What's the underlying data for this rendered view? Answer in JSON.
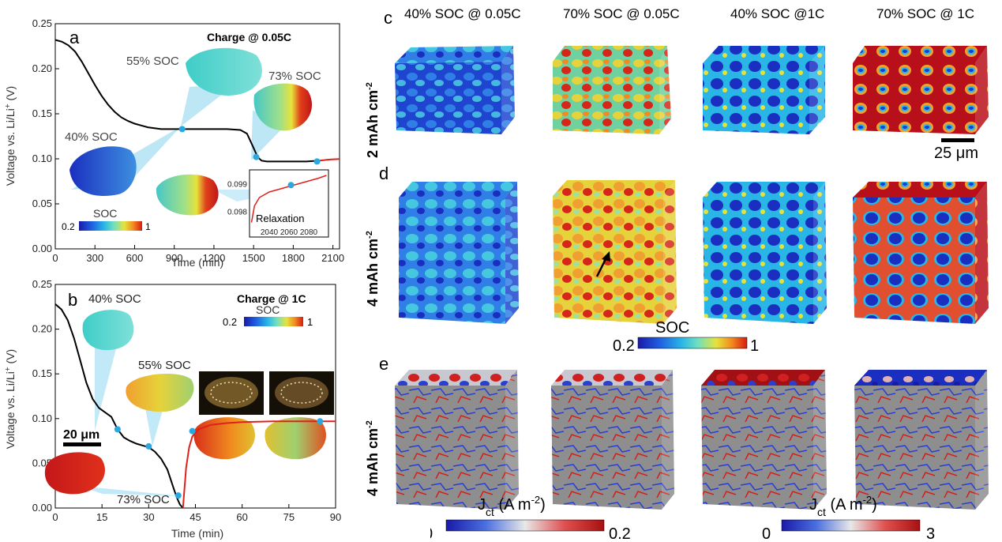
{
  "chart_data": [
    {
      "panel": "a",
      "type": "line",
      "title": "Charge @ 0.05C",
      "xlabel": "Time (min)",
      "ylabel": "Voltage vs. Li/Li",
      "ylabel_sup": "+",
      "ylabel_unit": " (V)",
      "xlim": [
        0,
        2150
      ],
      "ylim": [
        0,
        0.25
      ],
      "xticks": [
        "0",
        "300",
        "600",
        "900",
        "1200",
        "1500",
        "1800",
        "2100"
      ],
      "yticks": [
        "0.00",
        "0.05",
        "0.10",
        "0.15",
        "0.20",
        "0.25"
      ],
      "series": [
        {
          "color": "#000000",
          "x": [
            0,
            50,
            100,
            150,
            200,
            250,
            300,
            350,
            400,
            450,
            500,
            550,
            600,
            650,
            700,
            750,
            800,
            850,
            900,
            950,
            1000,
            1100,
            1200,
            1300,
            1400,
            1450,
            1500,
            1530,
            1560,
            1600,
            1700,
            1800,
            1900,
            2000
          ],
          "y": [
            0.232,
            0.23,
            0.226,
            0.219,
            0.208,
            0.195,
            0.182,
            0.17,
            0.16,
            0.152,
            0.146,
            0.142,
            0.139,
            0.137,
            0.135,
            0.134,
            0.133,
            0.133,
            0.133,
            0.133,
            0.133,
            0.133,
            0.133,
            0.133,
            0.132,
            0.128,
            0.112,
            0.102,
            0.098,
            0.097,
            0.097,
            0.097,
            0.097,
            0.098
          ]
        },
        {
          "color": "#e0201b",
          "x": [
            2000,
            2030,
            2060,
            2090,
            2120,
            2150
          ],
          "y": [
            0.098,
            0.0985,
            0.099,
            0.0993,
            0.0996,
            0.0998
          ]
        }
      ],
      "markers": [
        {
          "x": 960,
          "y": 0.133
        },
        {
          "x": 1520,
          "y": 0.102
        },
        {
          "x": 1980,
          "y": 0.097
        }
      ],
      "annotations": [
        "55% SOC",
        "73% SOC",
        "40% SOC"
      ],
      "colorbar": {
        "title": "SOC",
        "min": "0.2",
        "max": "1"
      },
      "inset": {
        "label": "Relaxation",
        "xticks": [
          "2040",
          "2060",
          "2080"
        ],
        "yticks": [
          "0.098",
          "0.099"
        ],
        "xlim": [
          2020,
          2100
        ],
        "ylim": [
          0.0975,
          0.0995
        ],
        "series": {
          "color": "#e0201b",
          "x": [
            2022,
            2025,
            2030,
            2040,
            2050,
            2060,
            2070,
            2080,
            2090,
            2098
          ],
          "y": [
            0.0976,
            0.0982,
            0.0985,
            0.0987,
            0.0988,
            0.0989,
            0.099,
            0.0991,
            0.0992,
            0.0993
          ]
        },
        "marker": {
          "x": 2062,
          "y": 0.09895
        }
      }
    },
    {
      "panel": "b",
      "type": "line",
      "title": "Charge @ 1C",
      "xlabel": "Time (min)",
      "ylabel": "Voltage vs. Li/Li",
      "ylabel_sup": "+",
      "ylabel_unit": " (V)",
      "xlim": [
        0,
        90
      ],
      "ylim": [
        0,
        0.25
      ],
      "xticks": [
        "0",
        "15",
        "30",
        "45",
        "60",
        "75",
        "90"
      ],
      "yticks": [
        "0.00",
        "0.05",
        "0.10",
        "0.15",
        "0.20",
        "0.25"
      ],
      "series": [
        {
          "color": "#000000",
          "x": [
            0,
            2,
            4,
            6,
            8,
            10,
            12,
            14,
            16,
            18,
            20,
            22,
            24,
            26,
            28,
            30,
            32,
            34,
            36,
            38,
            39,
            40,
            41
          ],
          "y": [
            0.228,
            0.222,
            0.21,
            0.19,
            0.165,
            0.14,
            0.122,
            0.112,
            0.107,
            0.102,
            0.088,
            0.079,
            0.075,
            0.072,
            0.07,
            0.068,
            0.063,
            0.055,
            0.043,
            0.022,
            0.012,
            0.004,
            0.0
          ]
        },
        {
          "color": "#e0201b",
          "x": [
            41,
            42,
            43,
            44,
            46,
            50,
            55,
            60,
            70,
            80,
            90
          ],
          "y": [
            0.0,
            0.045,
            0.068,
            0.08,
            0.088,
            0.093,
            0.095,
            0.096,
            0.097,
            0.097,
            0.097
          ]
        }
      ],
      "markers": [
        {
          "x": 20,
          "y": 0.088
        },
        {
          "x": 30,
          "y": 0.069
        },
        {
          "x": 39.5,
          "y": 0.014
        },
        {
          "x": 44,
          "y": 0.086
        },
        {
          "x": 85,
          "y": 0.097
        }
      ],
      "annotations": [
        "40% SOC",
        "55% SOC",
        "73% SOC"
      ],
      "colorbar": {
        "title": "SOC",
        "min": "0.2",
        "max": "1"
      },
      "scalebar": "20 μm"
    }
  ],
  "cubes": {
    "col_titles": [
      "40% SOC @ 0.05C",
      "70% SOC @ 0.05C",
      "40% SOC @1C",
      "70% SOC @ 1C"
    ],
    "rows": [
      {
        "panel": "c",
        "label": "2 mAh cm",
        "sup": "-2"
      },
      {
        "panel": "d",
        "label": "4 mAh cm",
        "sup": "-2"
      },
      {
        "panel": "e",
        "label": "4 mAh cm",
        "sup": "-2"
      }
    ],
    "scalebar": "25 μm",
    "soc_colorbar": {
      "title": "SOC",
      "min": "0.2",
      "max": "1"
    },
    "jct_colorbars": [
      {
        "title": "J",
        "sub": "ct",
        "unit": " (A m",
        "unit_sup": "-2",
        "unit_end": ")",
        "min": "0",
        "max": "0.2"
      },
      {
        "title": "J",
        "sub": "ct",
        "unit": " (A m",
        "unit_sup": "-2",
        "unit_end": ")",
        "min": "0",
        "max": "3"
      }
    ]
  },
  "colors": {
    "soc_gradient": [
      "#1a1aa8",
      "#1f5fe0",
      "#29b6e6",
      "#6fe0c0",
      "#e6e23a",
      "#f28a1f",
      "#d61b12"
    ],
    "jct_gradient": [
      "#1a1aa8",
      "#4a6fe0",
      "#e8e8e8",
      "#e05050",
      "#a81010"
    ],
    "marker": "#29a9e0",
    "callout": "#a8dff3"
  }
}
